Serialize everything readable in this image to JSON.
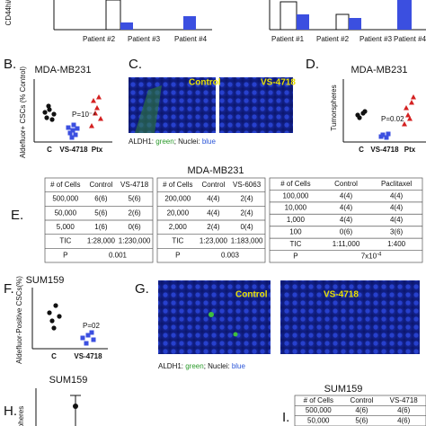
{
  "panel_A": {
    "y_axis_label": "CD44hi/",
    "left_categories": [
      "Patient #2",
      "Patient #3",
      "Patient #4"
    ],
    "right_categories": [
      "Patient #1",
      "Patient #2",
      "Patient #3",
      "Patient #4"
    ]
  },
  "panel_B": {
    "label": "B.",
    "title": "MDA-MB231",
    "y_axis_label": "Aldefluor+ CSCs (% Control)",
    "annotation": "P=10⁻⁴",
    "categories": [
      "C",
      "VS-4718",
      "Ptx"
    ]
  },
  "panel_C": {
    "label": "C.",
    "images": [
      "Control",
      "VS-4718"
    ],
    "caption": [
      "ALDH1: ",
      "green",
      "; Nuclei: ",
      "blue"
    ]
  },
  "panel_D": {
    "label": "D.",
    "title": "MDA-MB231",
    "y_axis_label": "Tumorspheres",
    "annotation": "P=0.02",
    "categories": [
      "C",
      "VS-4718",
      "Ptx"
    ]
  },
  "panel_E": {
    "label": "E.",
    "title": "MDA-MB231",
    "tables": [
      {
        "header": [
          "# of Cells",
          "Control",
          "VS-4718"
        ],
        "rows": [
          [
            "500,000",
            "6(6)",
            "5(6)"
          ],
          [
            "50,000",
            "5(6)",
            "2(6)"
          ],
          [
            "5,000",
            "1(6)",
            "0(6)"
          ]
        ],
        "tic": [
          "TIC",
          "1:28,000",
          "1:230,000"
        ],
        "p": [
          "P",
          "0.001"
        ]
      },
      {
        "header": [
          "# of Cells",
          "Control",
          "VS-6063"
        ],
        "rows": [
          [
            "200,000",
            "4(4)",
            "2(4)"
          ],
          [
            "20,000",
            "4(4)",
            "2(4)"
          ],
          [
            "2,000",
            "2(4)",
            "0(4)"
          ]
        ],
        "tic": [
          "TIC",
          "1:23,000",
          "1:183,000"
        ],
        "p": [
          "P",
          "0.003"
        ]
      },
      {
        "header": [
          "# of Cells",
          "Control",
          "Paclitaxel"
        ],
        "rows": [
          [
            "100,000",
            "4(4)",
            "4(4)"
          ],
          [
            "10,000",
            "4(4)",
            "4(4)"
          ],
          [
            "1,000",
            "4(4)",
            "4(4)"
          ],
          [
            "100",
            "0(6)",
            "3(6)"
          ]
        ],
        "tic": [
          "TIC",
          "1:11,000",
          "1:400"
        ],
        "p": [
          "P",
          "7x10",
          "-4"
        ]
      }
    ]
  },
  "panel_F": {
    "label": "F.",
    "title": "SUM159",
    "y_axis_label": "Aldefluor-Positive CSCs(%)",
    "annotation": "P=02",
    "categories": [
      "C",
      "VS-4718"
    ]
  },
  "panel_G": {
    "label": "G.",
    "images": [
      "Control",
      "VS-4718"
    ],
    "caption": [
      "ALDH1: ",
      "green",
      "; Nuclei: ",
      "blue"
    ]
  },
  "panel_H": {
    "label": "H.",
    "title": "SUM159",
    "y_axis_label": "pheres"
  },
  "panel_I": {
    "label": "I.",
    "title": "SUM159",
    "table": {
      "header": [
        "# of Cells",
        "Control",
        "VS-4718"
      ],
      "rows": [
        [
          "500,000",
          "4(6)",
          "4(6)"
        ],
        [
          "50,000",
          "5(6)",
          "4(6)"
        ]
      ]
    }
  }
}
